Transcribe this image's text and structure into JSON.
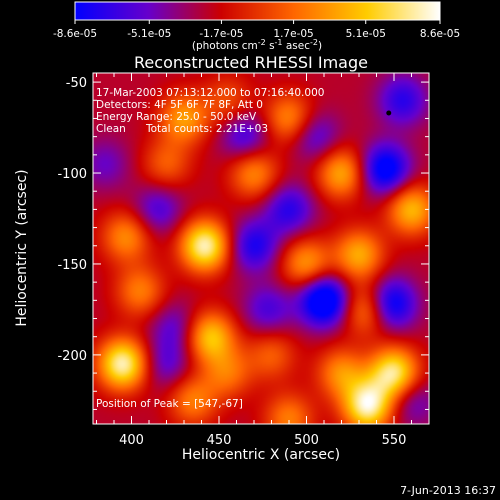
{
  "chart_data": {
    "type": "heatmap",
    "title": "Reconstructed RHESSI Image",
    "xlabel": "Heliocentric X (arcsec)",
    "ylabel": "Heliocentric Y (arcsec)",
    "xlim": [
      378,
      570
    ],
    "ylim": [
      -238,
      -45
    ],
    "x_ticks": [
      400,
      450,
      500,
      550
    ],
    "y_ticks": [
      -200,
      -150,
      -100,
      -50
    ],
    "x_tick_labels": [
      "400",
      "450",
      "500",
      "550"
    ],
    "y_tick_labels": [
      "-200",
      "-150",
      "-100",
      "-50"
    ],
    "colorbar": {
      "min": -8.6e-05,
      "max": 8.6e-05,
      "tick_values": [
        -8.6e-05,
        -5.1e-05,
        -1.7e-05,
        1.7e-05,
        5.1e-05,
        8.6e-05
      ],
      "tick_labels": [
        "-8.6e-05",
        "-5.1e-05",
        "-1.7e-05",
        "1.7e-05",
        "5.1e-05",
        "8.6e-05"
      ],
      "unit_prefix": "(photons cm",
      "unit_exp1": "-2",
      "unit_mid": " s",
      "unit_exp2": "-1",
      "unit_mid2": " asec",
      "unit_exp3": "-2",
      "unit_suffix": ")",
      "colors": [
        "#0000ff",
        "#6600cc",
        "#cc0000",
        "#ff6600",
        "#ffcc00",
        "#ffffff"
      ]
    },
    "annotations": {
      "time_range": "17-Mar-2003 07:13:12.000 to 07:16:40.000",
      "detectors": "Detectors: 4F 5F 6F 7F 8F, Att 0",
      "energy_range": "Energy Range: 25.0 - 50.0 keV",
      "method": "Clean",
      "total_counts": "Total counts: 2.21E+03",
      "peak": "Position of Peak = [547,-67]"
    },
    "peak_position": [
      547,
      -67
    ],
    "blobs": [
      {
        "x": 442,
        "y": -140,
        "v": 0.95
      },
      {
        "x": 430,
        "y": -70,
        "v": 0.55
      },
      {
        "x": 395,
        "y": -205,
        "v": 0.95
      },
      {
        "x": 397,
        "y": -135,
        "v": 0.5
      },
      {
        "x": 405,
        "y": -165,
        "v": 0.45
      },
      {
        "x": 445,
        "y": -190,
        "v": 0.7
      },
      {
        "x": 455,
        "y": -210,
        "v": 0.4
      },
      {
        "x": 435,
        "y": -225,
        "v": 0.45
      },
      {
        "x": 470,
        "y": -100,
        "v": 0.5
      },
      {
        "x": 490,
        "y": -70,
        "v": 0.5
      },
      {
        "x": 500,
        "y": -150,
        "v": 0.55
      },
      {
        "x": 520,
        "y": -100,
        "v": 0.6
      },
      {
        "x": 530,
        "y": -145,
        "v": 0.6
      },
      {
        "x": 535,
        "y": -175,
        "v": 0.55
      },
      {
        "x": 560,
        "y": -120,
        "v": 0.65
      },
      {
        "x": 550,
        "y": -210,
        "v": 0.9
      },
      {
        "x": 520,
        "y": -210,
        "v": 0.5
      },
      {
        "x": 535,
        "y": -228,
        "v": 0.95
      },
      {
        "x": 490,
        "y": -235,
        "v": 0.45
      },
      {
        "x": 420,
        "y": -95,
        "v": 0.35
      },
      {
        "x": 480,
        "y": -200,
        "v": 0.35
      },
      {
        "x": 455,
        "y": -60,
        "v": 0.3
      },
      {
        "x": 510,
        "y": -170,
        "v": -0.85
      },
      {
        "x": 545,
        "y": -98,
        "v": -0.7
      },
      {
        "x": 548,
        "y": -172,
        "v": -0.7
      },
      {
        "x": 470,
        "y": -140,
        "v": -0.5
      },
      {
        "x": 555,
        "y": -60,
        "v": -0.45
      },
      {
        "x": 490,
        "y": -120,
        "v": -0.45
      },
      {
        "x": 415,
        "y": -120,
        "v": -0.35
      },
      {
        "x": 425,
        "y": -185,
        "v": -0.3
      },
      {
        "x": 478,
        "y": -175,
        "v": -0.35
      },
      {
        "x": 505,
        "y": -80,
        "v": -0.35
      },
      {
        "x": 465,
        "y": -80,
        "v": -0.4
      },
      {
        "x": 420,
        "y": -205,
        "v": -0.3
      },
      {
        "x": 560,
        "y": -225,
        "v": -0.3
      },
      {
        "x": 385,
        "y": -95,
        "v": -0.25
      }
    ],
    "blob_sigma": 10
  },
  "footer": {
    "date_stamp": "7-Jun-2013 16:37"
  }
}
